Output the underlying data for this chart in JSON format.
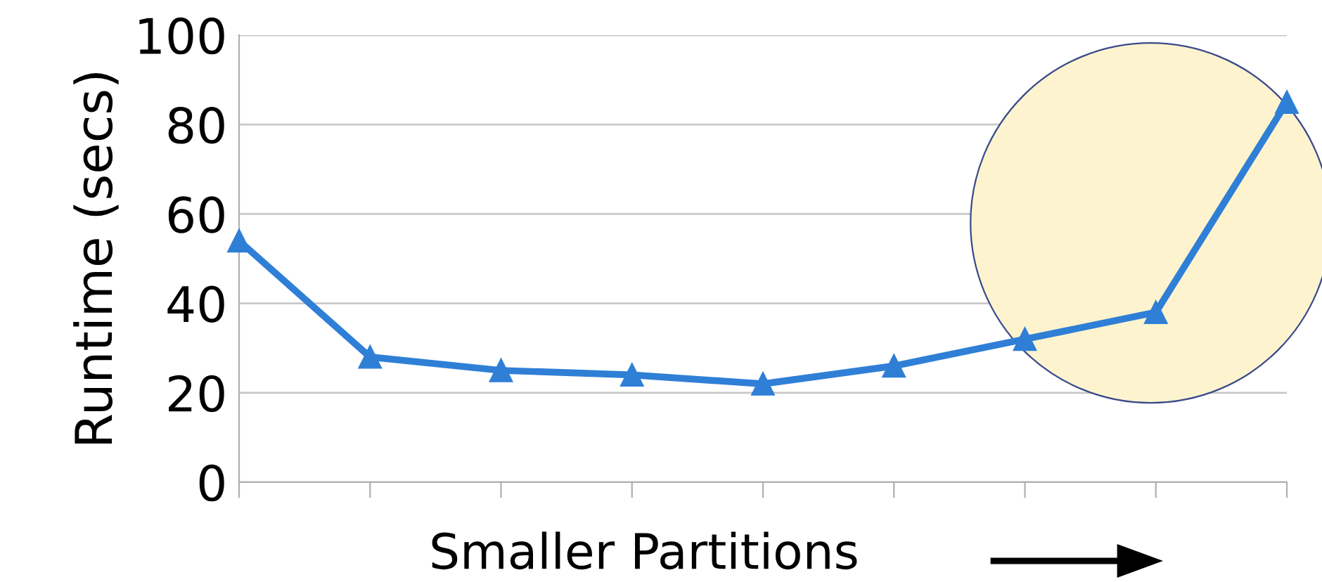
{
  "chart_data": {
    "type": "line",
    "xlabel": "Smaller Partitions",
    "ylabel": "Runtime (secs)",
    "categories": [
      null,
      null,
      null,
      null,
      null,
      null,
      null,
      null,
      null
    ],
    "series": [
      {
        "color": "#2f7fd6",
        "values": [
          54,
          28,
          25,
          24,
          22,
          26,
          32,
          38,
          85
        ]
      }
    ],
    "ylim": [
      0,
      100
    ],
    "yticks": [
      0,
      20,
      40,
      60,
      80,
      100
    ],
    "grid": "y",
    "marker": "triangle",
    "line_style": "solid"
  }
}
